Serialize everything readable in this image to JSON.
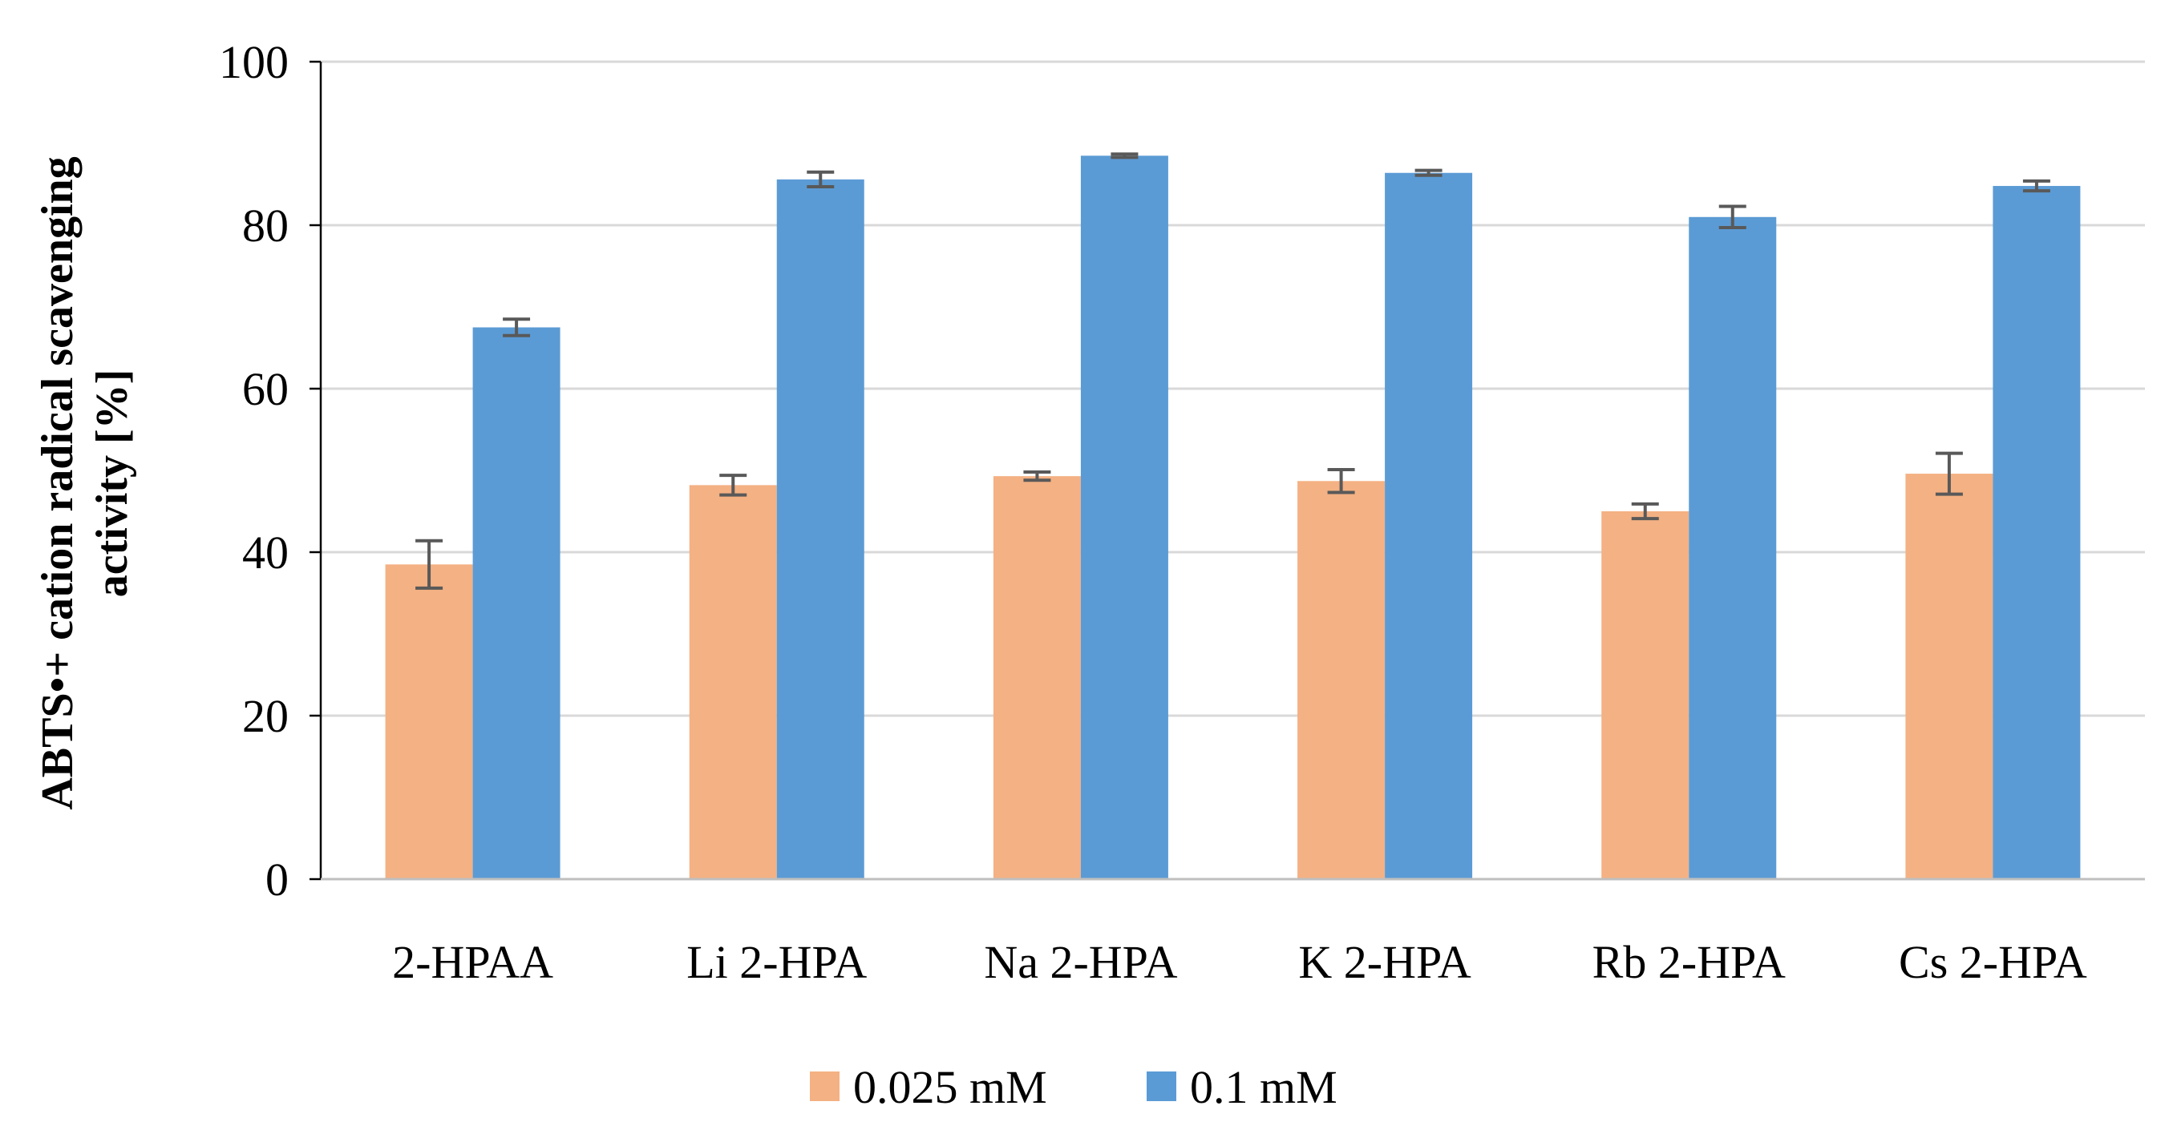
{
  "chart_data": {
    "type": "bar",
    "title": "",
    "xlabel": "",
    "ylabel_line1": "ABTS•+ cation radical scavenging",
    "ylabel_line2": "activity [%]",
    "ylim": [
      0,
      100
    ],
    "yticks": [
      "0",
      "20",
      "40",
      "60",
      "80",
      "100"
    ],
    "grid": true,
    "legend_position": "bottom-center",
    "categories": [
      "2-HPAA",
      "Li 2-HPA",
      "Na 2-HPA",
      "K 2-HPA",
      "Rb 2-HPA",
      "Cs 2-HPA"
    ],
    "series": [
      {
        "name": "0.025 mM",
        "color": "#F4B183",
        "values": [
          38.5,
          48.2,
          49.3,
          48.7,
          45.0,
          49.6
        ],
        "errors": [
          2.9,
          1.2,
          0.5,
          1.4,
          0.9,
          2.5
        ]
      },
      {
        "name": "0.1 mM",
        "color": "#5B9BD5",
        "values": [
          67.5,
          85.6,
          88.5,
          86.4,
          81.0,
          84.8
        ],
        "errors": [
          1.0,
          0.9,
          0.2,
          0.3,
          1.3,
          0.6
        ]
      }
    ],
    "gridline_color": "#D9D9D9",
    "error_bar_color": "#595959"
  }
}
